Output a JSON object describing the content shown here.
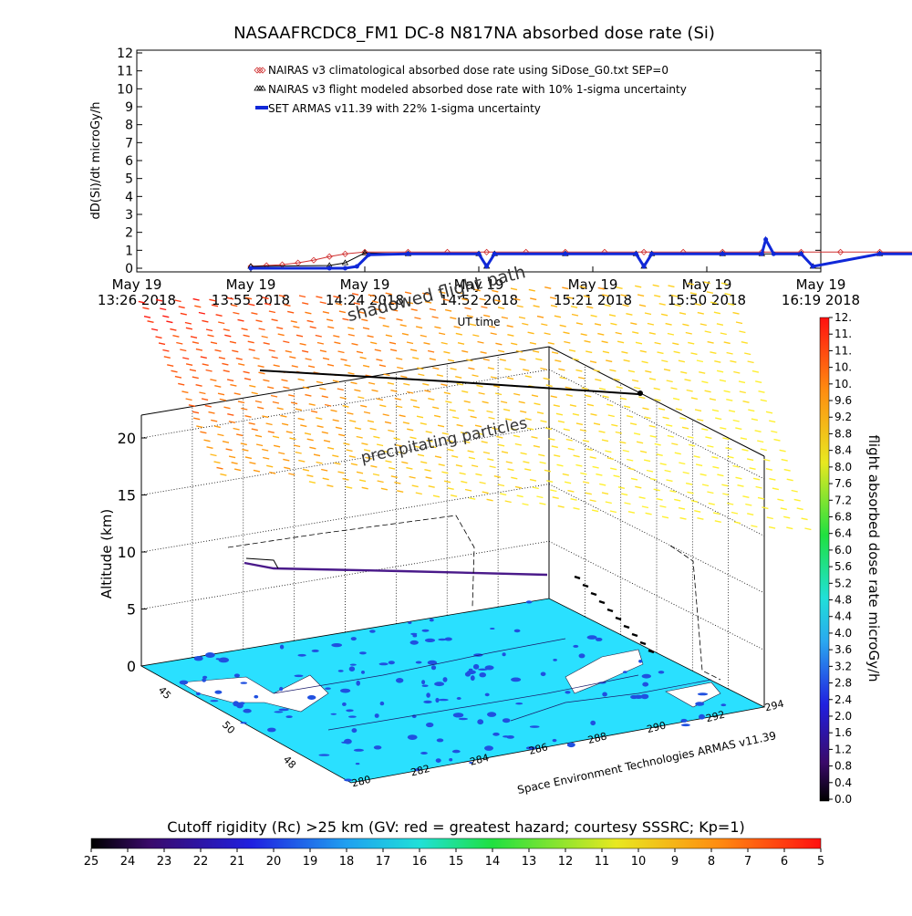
{
  "chart_data": [
    {
      "type": "line",
      "title": "NASAAFRCDC8_FM1 DC-8    N817NA absorbed dose rate (Si)",
      "ylabel": "dD(Si)/dt microGy/h",
      "xlabel": "UT time",
      "ylim": [
        0,
        12
      ],
      "y_ticks": [
        "0",
        "1",
        "2",
        "3",
        "4",
        "5",
        "6",
        "7",
        "8",
        "9",
        "10",
        "11",
        "12"
      ],
      "x_ticks": [
        {
          "line1": "May 19",
          "line2": "13:26 2018"
        },
        {
          "line1": "May 19",
          "line2": "13:55 2018"
        },
        {
          "line1": "May 19",
          "line2": "14:24 2018"
        },
        {
          "line1": "May 19",
          "line2": "14:52 2018"
        },
        {
          "line1": "May 19",
          "line2": "15:21 2018"
        },
        {
          "line1": "May 19",
          "line2": "15:50 2018"
        },
        {
          "line1": "May 19",
          "line2": "16:19 2018"
        }
      ],
      "legend_position": "top-center",
      "series": [
        {
          "name": "NAIRAS v3 climatological absorbed dose rate using SiDose_G0.txt SEP=0",
          "color": "#d03030",
          "marker": "diamond",
          "x_min": [
            0,
            4,
            8,
            12,
            16,
            20,
            24,
            29,
            40,
            50,
            60,
            70,
            80,
            90,
            100,
            110,
            120,
            130,
            140,
            150,
            160,
            170,
            180
          ],
          "values": [
            0.1,
            0.15,
            0.2,
            0.3,
            0.45,
            0.65,
            0.8,
            0.9,
            0.9,
            0.9,
            0.9,
            0.9,
            0.9,
            0.9,
            0.9,
            0.9,
            0.9,
            0.9,
            0.9,
            0.9,
            0.9,
            0.9,
            0.9
          ]
        },
        {
          "name": "NAIRAS v3 flight modeled absorbed dose rate with 10% 1-sigma uncertainty",
          "color": "#000000",
          "marker": "triangle",
          "x_min": [
            0,
            20,
            24,
            29,
            40,
            58,
            60,
            62,
            80,
            98,
            100,
            102,
            120,
            130,
            140,
            143,
            160,
            170,
            172,
            180
          ],
          "values": [
            0.1,
            0.15,
            0.3,
            0.85,
            0.8,
            0.8,
            0.1,
            0.8,
            0.8,
            0.8,
            0.1,
            0.8,
            0.8,
            0.8,
            0.8,
            0.1,
            0.8,
            0.8,
            0.1,
            0.9
          ]
        },
        {
          "name": "SET ARMAS v11.39 with 22% 1-sigma uncertainty",
          "color": "#1028d8",
          "marker": "filled-circle",
          "x_min": [
            0,
            20,
            24,
            27,
            30,
            40,
            58,
            60,
            62,
            80,
            98,
            100,
            102,
            120,
            130,
            131,
            133,
            140,
            143,
            160,
            170,
            172,
            180
          ],
          "values": [
            0,
            0,
            0,
            0.1,
            0.75,
            0.8,
            0.8,
            0.1,
            0.8,
            0.8,
            0.8,
            0.1,
            0.8,
            0.8,
            0.8,
            1.6,
            0.8,
            0.8,
            0.1,
            0.8,
            0.8,
            0.1,
            0.75
          ]
        }
      ]
    },
    {
      "type": "scatter",
      "title": "",
      "annotations": [
        "shadowed flight path",
        "precipitating particles"
      ],
      "zlabel": "Altitude (km)",
      "z_ticks": [
        "0",
        "5",
        "10",
        "15",
        "20"
      ],
      "zlim": [
        0,
        22
      ],
      "lon_ticks": [
        "280",
        "282",
        "284",
        "286",
        "288",
        "290",
        "292",
        "294"
      ],
      "lat_ticks": [
        "45",
        "50",
        "48"
      ],
      "credit": "Space Environment Technologies ARMAS v11.39",
      "flight_altitude_km": 11,
      "colorbar_dose": {
        "label": "flight absorbed dose rate microGy/h",
        "ticks": [
          "0.0",
          "0.4",
          "0.8",
          "1.2",
          "1.6",
          "2.0",
          "2.4",
          "2.8",
          "3.2",
          "3.6",
          "4.0",
          "4.4",
          "4.8",
          "5.2",
          "5.6",
          "6.0",
          "6.4",
          "6.8",
          "7.2",
          "7.6",
          "8.0",
          "8.4",
          "8.8",
          "9.2",
          "9.6",
          "10.",
          "10.",
          "11.",
          "11.",
          "12."
        ]
      },
      "colorbar_rigidity": {
        "label": "Cutoff rigidity (Rc) >25 km (GV: red = greatest hazard; courtesy SSSRC; Kp=1)",
        "ticks": [
          "25",
          "24",
          "23",
          "22",
          "21",
          "20",
          "19",
          "18",
          "17",
          "16",
          "15",
          "14",
          "13",
          "12",
          "11",
          "10",
          "9",
          "8",
          "7",
          "6",
          "5"
        ]
      }
    }
  ],
  "colors": {
    "ocean": "#2ae0ff",
    "land": "#ffffff",
    "lakes": "#2050e0",
    "flight_path": "#4a1a8a"
  }
}
